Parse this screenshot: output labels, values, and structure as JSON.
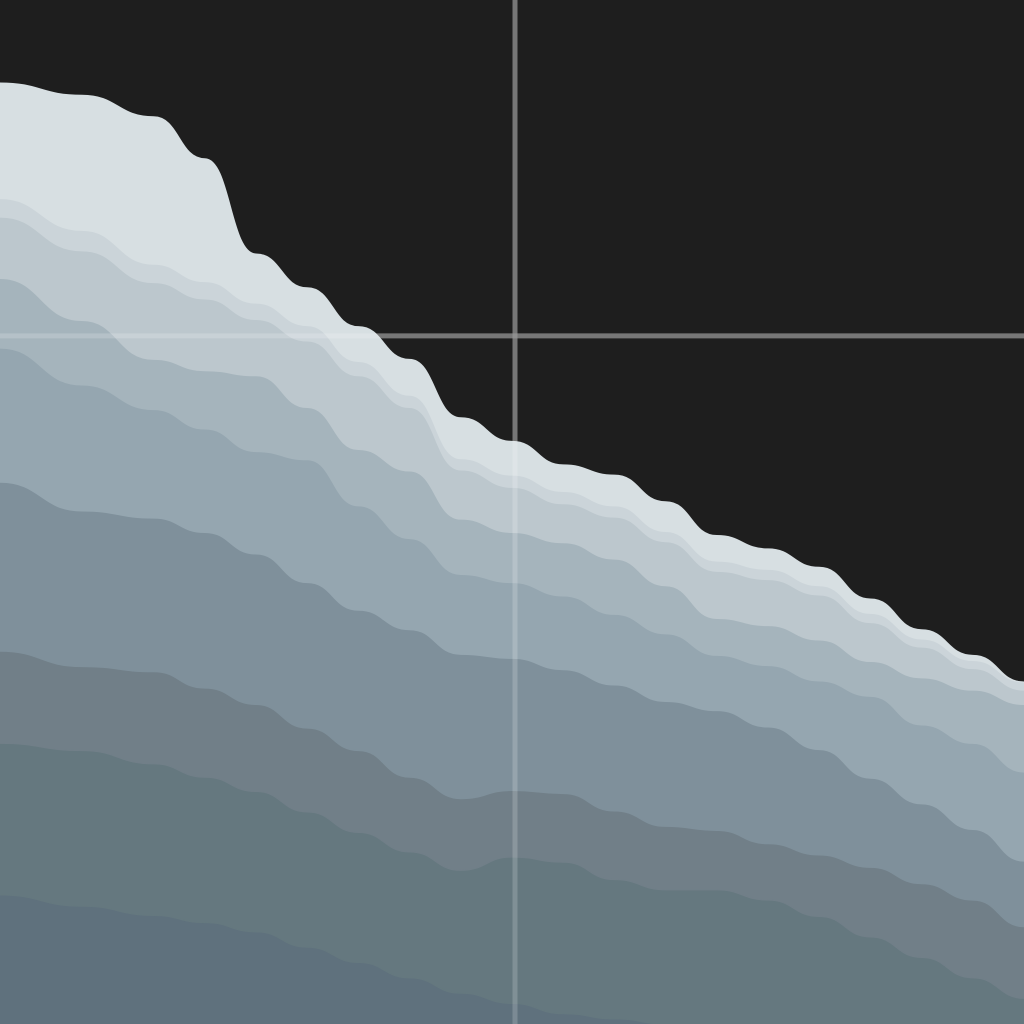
{
  "chart_data": {
    "type": "area",
    "stacked": true,
    "title": "",
    "xlabel": "",
    "ylabel": "",
    "grid": true,
    "legend": "none",
    "background": "#1e1e1e",
    "gridline_color": "#5a5a5a",
    "xlim": [
      0,
      1
    ],
    "ylim": [
      0,
      1
    ],
    "x": [
      0.0,
      0.08,
      0.15,
      0.2,
      0.25,
      0.3,
      0.35,
      0.4,
      0.45,
      0.5,
      0.55,
      0.6,
      0.65,
      0.7,
      0.75,
      0.8,
      0.85,
      0.9,
      0.95,
      1.0
    ],
    "series": [
      {
        "color": "#5f717d",
        "values": [
          0.126,
          0.115,
          0.106,
          0.099,
          0.09,
          0.075,
          0.06,
          0.045,
          0.03,
          0.02,
          0.01,
          0.005,
          0.0,
          0.0,
          0.0,
          0.0,
          0.0,
          0.0,
          0.0,
          0.0
        ]
      },
      {
        "color": "#65787f",
        "values": [
          0.148,
          0.152,
          0.148,
          0.142,
          0.137,
          0.132,
          0.127,
          0.123,
          0.12,
          0.143,
          0.148,
          0.136,
          0.131,
          0.131,
          0.121,
          0.105,
          0.085,
          0.065,
          0.045,
          0.025
        ]
      },
      {
        "color": "#717f88",
        "values": [
          0.09,
          0.082,
          0.09,
          0.087,
          0.085,
          0.082,
          0.08,
          0.073,
          0.07,
          0.065,
          0.067,
          0.067,
          0.062,
          0.058,
          0.055,
          0.06,
          0.068,
          0.072,
          0.076,
          0.07
        ]
      },
      {
        "color": "#7f909b",
        "values": [
          0.165,
          0.152,
          0.15,
          0.152,
          0.147,
          0.142,
          0.137,
          0.144,
          0.141,
          0.129,
          0.121,
          0.123,
          0.122,
          0.117,
          0.114,
          0.103,
          0.087,
          0.078,
          0.069,
          0.064
        ]
      },
      {
        "color": "#95a6b0",
        "values": [
          0.131,
          0.123,
          0.106,
          0.101,
          0.1,
          0.12,
          0.102,
          0.089,
          0.078,
          0.074,
          0.072,
          0.069,
          0.066,
          0.054,
          0.06,
          0.067,
          0.08,
          0.077,
          0.084,
          0.087
        ]
      },
      {
        "color": "#a5b4bc",
        "values": [
          0.068,
          0.063,
          0.049,
          0.057,
          0.074,
          0.051,
          0.055,
          0.066,
          0.054,
          0.049,
          0.052,
          0.054,
          0.047,
          0.036,
          0.039,
          0.04,
          0.034,
          0.046,
          0.052,
          0.066
        ]
      },
      {
        "color": "#bcc7cd",
        "values": [
          0.06,
          0.068,
          0.075,
          0.07,
          0.055,
          0.065,
          0.072,
          0.062,
          0.048,
          0.044,
          0.038,
          0.041,
          0.043,
          0.046,
          0.045,
          0.044,
          0.038,
          0.03,
          0.021,
          0.014
        ]
      },
      {
        "color": "#cbd4d9",
        "values": [
          0.018,
          0.02,
          0.018,
          0.017,
          0.016,
          0.015,
          0.014,
          0.012,
          0.011,
          0.012,
          0.012,
          0.011,
          0.01,
          0.01,
          0.01,
          0.009,
          0.009,
          0.008,
          0.008,
          0.008
        ]
      },
      {
        "color": "#d7dfe2",
        "values": [
          0.113,
          0.132,
          0.144,
          0.12,
          0.048,
          0.037,
          0.034,
          0.035,
          0.04,
          0.033,
          0.026,
          0.03,
          0.029,
          0.025,
          0.02,
          0.018,
          0.014,
          0.009,
          0.005,
          0.0
        ]
      }
    ]
  }
}
